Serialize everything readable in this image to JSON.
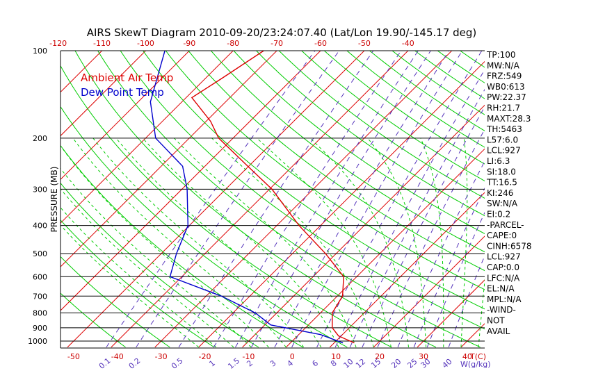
{
  "chart_data": {
    "type": "line",
    "title": "AIRS SkewT Diagram 2010-09-20/23:24:07.40 (Lat/Lon 19.90/-145.17 deg)",
    "ylabel": "PRESSURE (MB)",
    "xlabel": "T(C)",
    "mixing_ratio_unit": "W(g/kg)",
    "y_scale": "log",
    "ylim": [
      1050,
      100
    ],
    "xlim": [
      -53,
      44
    ],
    "pressure_ticks": [
      "100",
      "200",
      "300",
      "400",
      "500",
      "600",
      "700",
      "800",
      "900",
      "1000"
    ],
    "bottom_temp_ticks": [
      "-50",
      "-40",
      "-30",
      "-20",
      "-10",
      "0",
      "10",
      "20",
      "30",
      "40"
    ],
    "top_temp_ticks": [
      "-120",
      "-110",
      "-100",
      "-90",
      "-80",
      "-70",
      "-60",
      "-50",
      "-40"
    ],
    "mixing_ratio_labels": [
      "0.1",
      "0.2",
      "0.5",
      "1",
      "1.5",
      "2",
      "3",
      "4",
      "6",
      "8",
      "10",
      "12",
      "15",
      "20",
      "25",
      "30",
      "40"
    ],
    "legend": [
      "Ambient Air Temp",
      "Dew Point Temp"
    ],
    "series": [
      {
        "name": "Ambient Air Temp",
        "color": "#dd0000",
        "points": [
          {
            "p": 100,
            "t": -73.0
          },
          {
            "p": 125,
            "t": -76.3
          },
          {
            "p": 145,
            "t": -78.7
          },
          {
            "p": 175,
            "t": -69.0
          },
          {
            "p": 200,
            "t": -63.3
          },
          {
            "p": 250,
            "t": -50.2
          },
          {
            "p": 300,
            "t": -39.4
          },
          {
            "p": 400,
            "t": -24.9
          },
          {
            "p": 500,
            "t": -12.4
          },
          {
            "p": 600,
            "t": -3.0
          },
          {
            "p": 700,
            "t": 1.2
          },
          {
            "p": 800,
            "t": 2.7
          },
          {
            "p": 900,
            "t": 6.1
          },
          {
            "p": 960,
            "t": 9.4
          },
          {
            "p": 1015,
            "t": 14.6
          }
        ]
      },
      {
        "name": "Dew Point Temp",
        "color": "#0000cc",
        "points": [
          {
            "p": 100,
            "t": -95.6
          },
          {
            "p": 150,
            "t": -87.2
          },
          {
            "p": 200,
            "t": -77.7
          },
          {
            "p": 250,
            "t": -65.1
          },
          {
            "p": 300,
            "t": -58.8
          },
          {
            "p": 400,
            "t": -50.3
          },
          {
            "p": 500,
            "t": -46.5
          },
          {
            "p": 600,
            "t": -42.7
          },
          {
            "p": 700,
            "t": -26.5
          },
          {
            "p": 800,
            "t": -14.9
          },
          {
            "p": 880,
            "t": -8.6
          },
          {
            "p": 950,
            "t": 5.0
          },
          {
            "p": 1015,
            "t": 12.0
          }
        ]
      }
    ],
    "grid": true
  },
  "stats": [
    "TP:100",
    "MW:N/A",
    "FRZ:549",
    "WB0:613",
    "PW:22.37",
    "RH:21.7",
    "MAXT:28.3",
    "TH:5463",
    "L57:6.0",
    "LCL:927",
    "LI:6.3",
    "SI:18.0",
    "TT:16.5",
    "KI:246",
    "SW:N/A",
    "EI:0.2",
    "-PARCEL-",
    "CAPE:0",
    "CINH:6578",
    "LCL:927",
    "CAP:0.0",
    "LFC:N/A",
    "EL:N/A",
    "MPL:N/A",
    "-WIND-",
    "NOT",
    "AVAIL"
  ],
  "colors": {
    "isotherm": "#dd0000",
    "dry_adiabat": "#00cc00",
    "moist_adiabat": "#00cc00",
    "mixing_ratio": "#5533bb",
    "isobar": "#000000",
    "tick_labels": "#cc0000",
    "mixing_labels": "#5533bb"
  }
}
